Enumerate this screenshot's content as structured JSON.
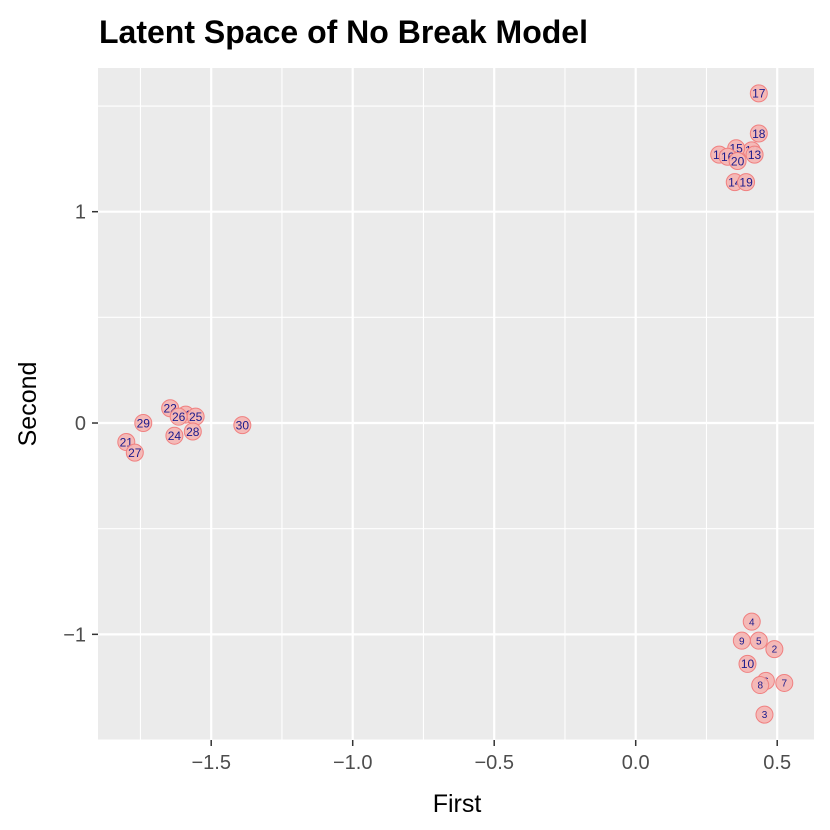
{
  "chart_data": {
    "type": "scatter",
    "title": "Latent Space of No Break Model",
    "xlabel": "First",
    "ylabel": "Second",
    "xlim": [
      -1.9,
      0.63
    ],
    "ylim": [
      -1.5,
      1.68
    ],
    "x_ticks": [
      -1.5,
      -1.0,
      -0.5,
      0.0,
      0.5
    ],
    "x_tick_labels": [
      "−1.5",
      "−1.0",
      "−0.5",
      "0.0",
      "0.5"
    ],
    "y_ticks": [
      -1,
      0,
      1
    ],
    "y_tick_labels": [
      "−1",
      "0",
      "1"
    ],
    "grid": true,
    "marker_fill": "#f4b6b4",
    "marker_stroke": "#f08080",
    "label_color": "#1a1a8c",
    "panel_background": "#ebebeb",
    "points": [
      {
        "label": "2",
        "x": 0.49,
        "y": -1.07
      },
      {
        "label": "3",
        "x": 0.455,
        "y": -1.38
      },
      {
        "label": "4",
        "x": 0.41,
        "y": -0.94
      },
      {
        "label": "5",
        "x": 0.435,
        "y": -1.03
      },
      {
        "label": "6",
        "x": 0.46,
        "y": -1.22
      },
      {
        "label": "7",
        "x": 0.525,
        "y": -1.23
      },
      {
        "label": "8",
        "x": 0.44,
        "y": -1.24
      },
      {
        "label": "9",
        "x": 0.375,
        "y": -1.03
      },
      {
        "label": "10",
        "x": 0.395,
        "y": -1.14
      },
      {
        "label": "11",
        "x": 0.295,
        "y": 1.27
      },
      {
        "label": "12",
        "x": 0.41,
        "y": 1.29
      },
      {
        "label": "13",
        "x": 0.42,
        "y": 1.27
      },
      {
        "label": "14",
        "x": 0.35,
        "y": 1.14
      },
      {
        "label": "15",
        "x": 0.355,
        "y": 1.3
      },
      {
        "label": "16",
        "x": 0.325,
        "y": 1.26
      },
      {
        "label": "17",
        "x": 0.435,
        "y": 1.56
      },
      {
        "label": "18",
        "x": 0.435,
        "y": 1.37
      },
      {
        "label": "19",
        "x": 0.39,
        "y": 1.14
      },
      {
        "label": "20",
        "x": 0.36,
        "y": 1.24
      },
      {
        "label": "21",
        "x": -1.8,
        "y": -0.09
      },
      {
        "label": "22",
        "x": -1.645,
        "y": 0.07
      },
      {
        "label": "23",
        "x": -1.59,
        "y": 0.04
      },
      {
        "label": "24",
        "x": -1.63,
        "y": -0.06
      },
      {
        "label": "25",
        "x": -1.555,
        "y": 0.03
      },
      {
        "label": "26",
        "x": -1.615,
        "y": 0.03
      },
      {
        "label": "27",
        "x": -1.77,
        "y": -0.14
      },
      {
        "label": "28",
        "x": -1.565,
        "y": -0.04
      },
      {
        "label": "29",
        "x": -1.74,
        "y": 0.0
      },
      {
        "label": "30",
        "x": -1.39,
        "y": -0.01
      }
    ]
  }
}
